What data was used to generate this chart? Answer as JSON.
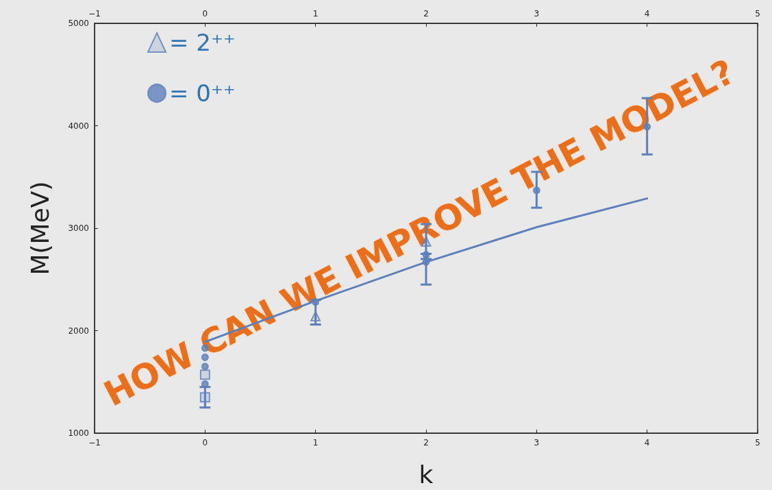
{
  "chart_data": {
    "type": "scatter",
    "xlabel": "k",
    "ylabel": "M(MeV)",
    "xlim": [
      -1,
      5
    ],
    "xticks": [
      {
        "value": -1,
        "label": "−1"
      },
      0,
      1,
      2,
      3,
      4,
      5
    ],
    "x2lim": [
      -1,
      5
    ],
    "x2ticks": [
      {
        "value": -1,
        "label": "−1"
      },
      0,
      1,
      2,
      3,
      4,
      5
    ],
    "ylim": [
      1000,
      5000
    ],
    "yticks": [
      1000,
      2000,
      3000,
      4000,
      5000
    ],
    "grid": false,
    "legend": "top left",
    "annotations": [
      "HOW CAN WE IMPROVE THE MODEL?"
    ],
    "series": [
      {
        "name": "= 2⁺⁺",
        "color": "#5b80bb",
        "marker": "triangle",
        "x": [
          1,
          2
        ],
        "values": [
          2140,
          2870
        ],
        "errors": [
          [
            2060,
            2300
          ],
          [
            2700,
            3040
          ]
        ]
      },
      {
        "name": "= 0⁺⁺",
        "color": "#5b80bb",
        "marker": "circle",
        "x": [
          0,
          0,
          0,
          0,
          1,
          2,
          2,
          3,
          4
        ],
        "values": [
          1830,
          1740,
          1650,
          1480,
          2280,
          2740,
          2670,
          3370,
          3990
        ],
        "errors": [
          null,
          null,
          null,
          null,
          null,
          null,
          [
            2450,
            2750
          ],
          [
            3200,
            3550
          ],
          [
            3720,
            4270
          ]
        ]
      },
      {
        "color": "#5b80bb",
        "marker": "square",
        "x": [
          0,
          0
        ],
        "values": [
          1570,
          1350
        ],
        "errors": [
          null,
          [
            1250,
            1450
          ]
        ]
      },
      {
        "type": "line",
        "color": "#5b80bb",
        "marker": "none",
        "x": [
          0,
          1,
          2,
          3,
          4
        ],
        "values": [
          1890,
          2290,
          2670,
          3010,
          3290
        ]
      }
    ]
  }
}
